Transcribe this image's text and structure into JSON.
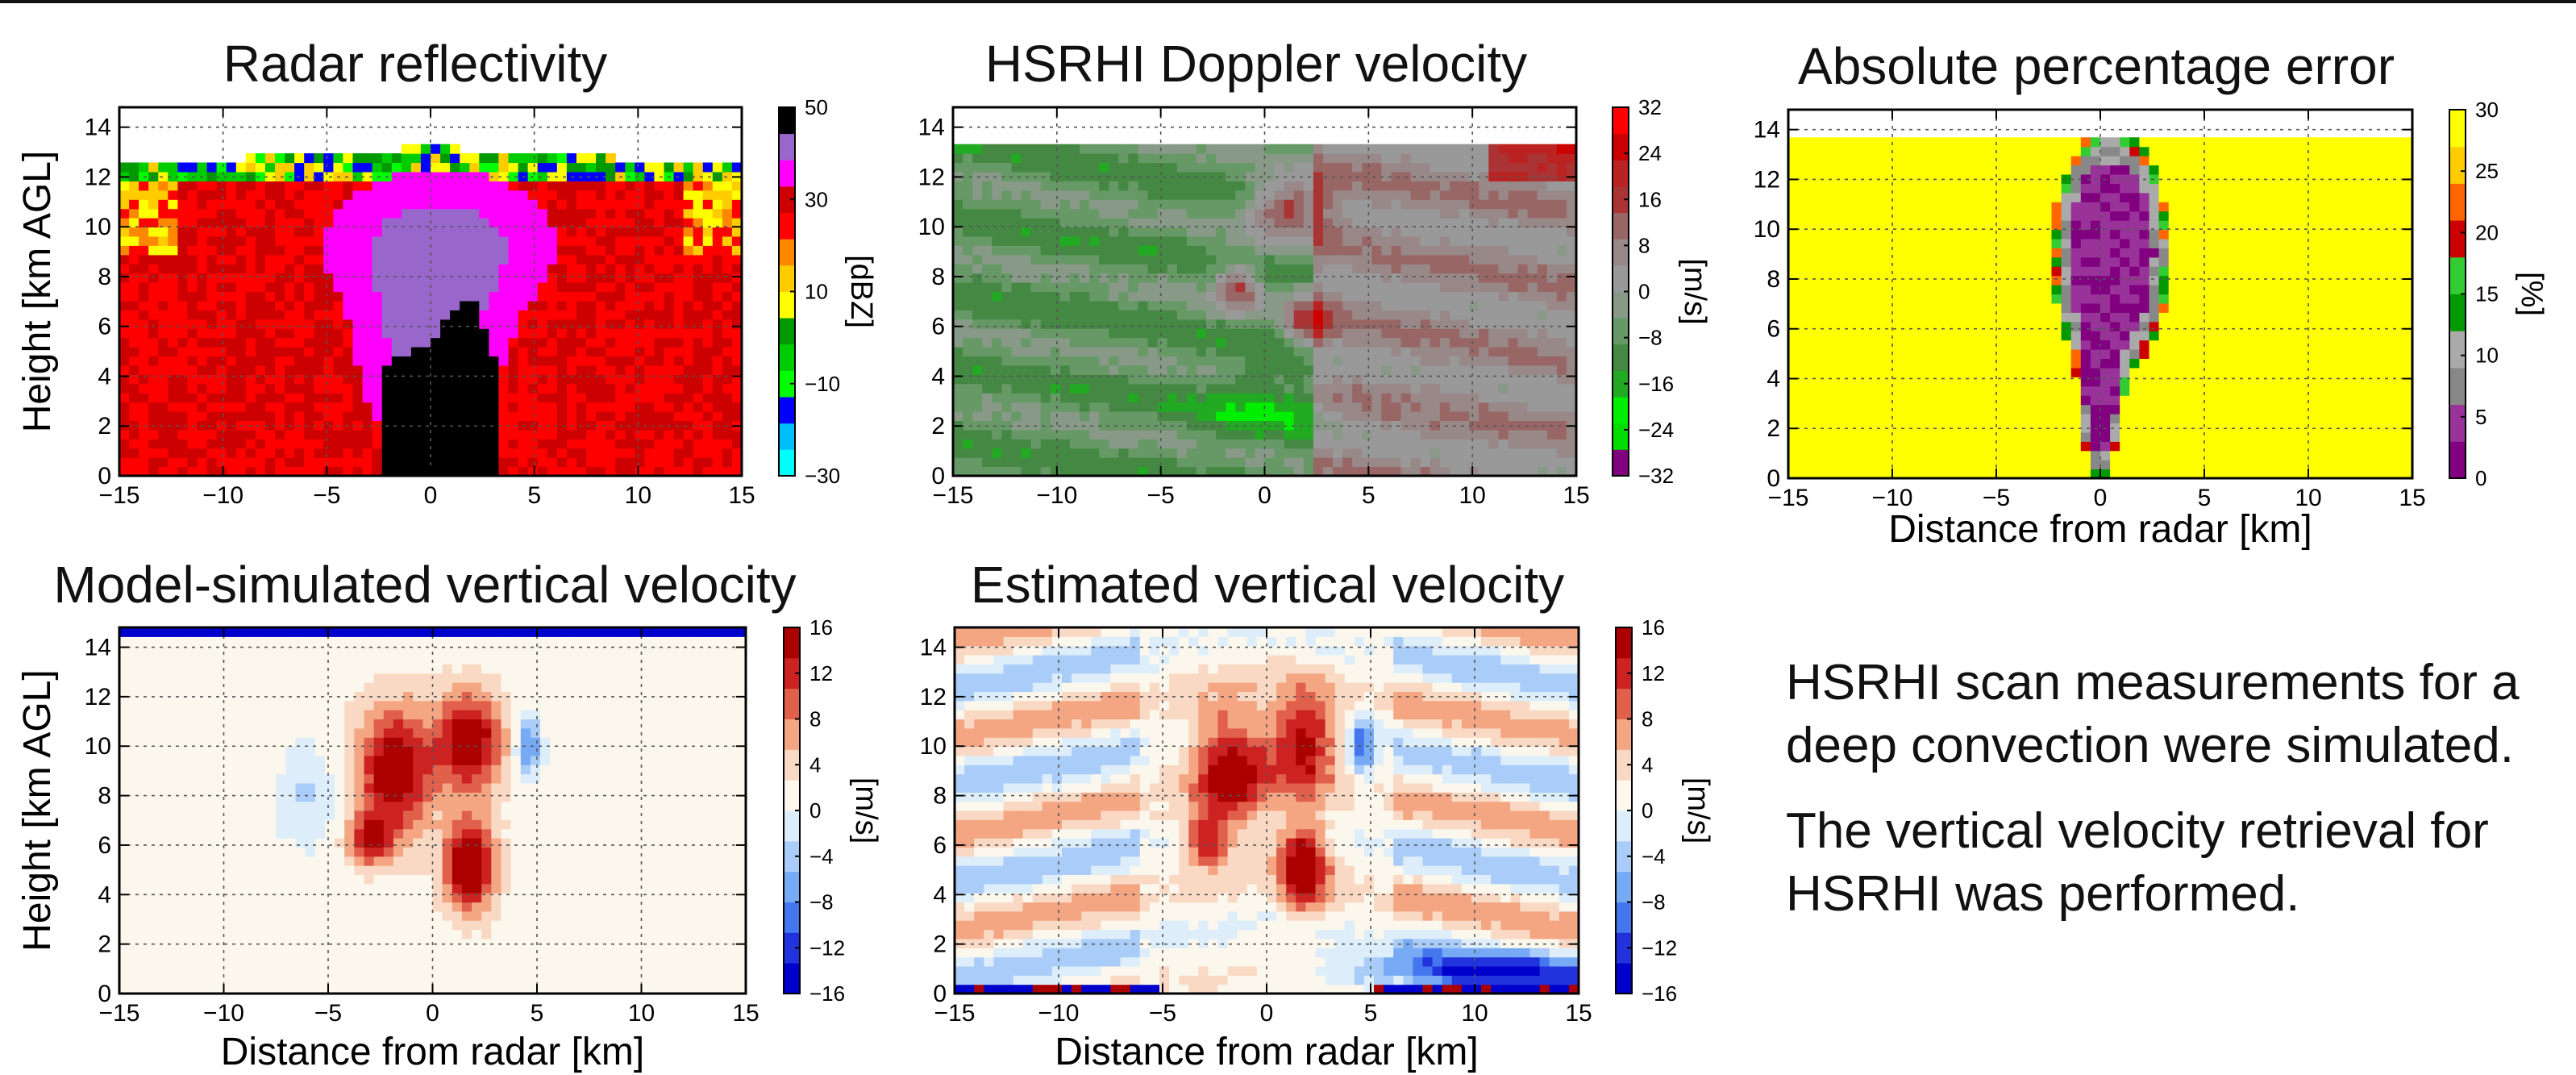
{
  "chart_data": [
    {
      "type": "heatmap",
      "title": "Radar reflectivity",
      "xlabel": "",
      "ylabel": "Height [km AGL]",
      "xlim": [
        -15,
        15
      ],
      "ylim": [
        0,
        14.8
      ],
      "xticks": [
        "−15",
        "−10",
        "−5",
        "0",
        "5",
        "10",
        "15"
      ],
      "yticks": [
        "0",
        "2",
        "4",
        "6",
        "8",
        "10",
        "12",
        "14"
      ],
      "colorbar": {
        "label": "[dBZ]",
        "ticks": [
          "50",
          "30",
          "10",
          "−10",
          "−30"
        ],
        "range": [
          -30,
          50
        ],
        "colors": [
          "#00ffff",
          "#00bfff",
          "#0000ff",
          "#00ff00",
          "#00cc00",
          "#009900",
          "#ffff00",
          "#ffcc00",
          "#ff8800",
          "#ff0000",
          "#cc0000",
          "#ff00ff",
          "#9966cc",
          "#000000"
        ]
      },
      "grid": true
    },
    {
      "type": "heatmap",
      "title": "HSRHI Doppler velocity",
      "xlabel": "",
      "ylabel": "",
      "xlim": [
        -15,
        15
      ],
      "ylim": [
        0,
        14.8
      ],
      "xticks": [
        "−15",
        "−10",
        "−5",
        "0",
        "5",
        "10",
        "15"
      ],
      "yticks": [
        "0",
        "2",
        "4",
        "6",
        "8",
        "10",
        "12",
        "14"
      ],
      "colorbar": {
        "label": "[m/s]",
        "ticks": [
          "32",
          "24",
          "16",
          "8",
          "0",
          "−8",
          "−16",
          "−24",
          "−32"
        ],
        "range": [
          -32,
          32
        ],
        "colors": [
          "#800080",
          "#00dd00",
          "#00ee00",
          "#22aa22",
          "#448844",
          "#669966",
          "#889988",
          "#999999",
          "#998888",
          "#996666",
          "#aa3333",
          "#bb2222",
          "#cc0000",
          "#ff0000"
        ]
      },
      "grid": true
    },
    {
      "type": "heatmap",
      "title": "Absolute percentage error",
      "xlabel": "Distance from radar [km]",
      "ylabel": "",
      "xlim": [
        -15,
        15
      ],
      "ylim": [
        0,
        14.8
      ],
      "xticks": [
        "−15",
        "−10",
        "−5",
        "0",
        "5",
        "10",
        "15"
      ],
      "yticks": [
        "0",
        "2",
        "4",
        "6",
        "8",
        "10",
        "12",
        "14"
      ],
      "colorbar": {
        "label": "[%]",
        "ticks": [
          "30",
          "25",
          "20",
          "15",
          "10",
          "5",
          "0"
        ],
        "range": [
          0,
          30
        ],
        "colors": [
          "#800080",
          "#993399",
          "#888888",
          "#aaaaaa",
          "#009900",
          "#33cc33",
          "#cc0000",
          "#ff6600",
          "#ffcc00",
          "#ffff00"
        ]
      },
      "grid": true
    },
    {
      "type": "heatmap",
      "title": "Model-simulated vertical velocity",
      "xlabel": "Distance from radar [km]",
      "ylabel": "Height [km AGL]",
      "xlim": [
        -15,
        15
      ],
      "ylim": [
        0,
        14.8
      ],
      "xticks": [
        "−15",
        "−10",
        "−5",
        "0",
        "5",
        "10",
        "15"
      ],
      "yticks": [
        "0",
        "2",
        "4",
        "6",
        "8",
        "10",
        "12",
        "14"
      ],
      "colorbar": {
        "label": "[m/s]",
        "ticks": [
          "16",
          "12",
          "8",
          "4",
          "0",
          "−4",
          "−8",
          "−12",
          "−16"
        ],
        "range": [
          -16,
          16
        ],
        "colors": [
          "#0000cc",
          "#2233dd",
          "#4477ee",
          "#77aaf5",
          "#aaccf8",
          "#ddeefa",
          "#fbf7ec",
          "#fad9c4",
          "#f4a582",
          "#e0604b",
          "#cc2222",
          "#aa0000"
        ]
      },
      "grid": true
    },
    {
      "type": "heatmap",
      "title": "Estimated vertical velocity",
      "xlabel": "Distance from radar [km]",
      "ylabel": "",
      "xlim": [
        -15,
        15
      ],
      "ylim": [
        0,
        14.8
      ],
      "xticks": [
        "−15",
        "−10",
        "−5",
        "0",
        "5",
        "10",
        "15"
      ],
      "yticks": [
        "0",
        "2",
        "4",
        "6",
        "8",
        "10",
        "12",
        "14"
      ],
      "colorbar": {
        "label": "[m/s]",
        "ticks": [
          "16",
          "12",
          "8",
          "4",
          "0",
          "−4",
          "−8",
          "−12",
          "−16"
        ],
        "range": [
          -16,
          16
        ],
        "colors": [
          "#0000cc",
          "#2233dd",
          "#4477ee",
          "#77aaf5",
          "#aaccf8",
          "#ddeefa",
          "#fbf7ec",
          "#fad9c4",
          "#f4a582",
          "#e0604b",
          "#cc2222",
          "#aa0000"
        ]
      },
      "grid": true
    }
  ],
  "description": {
    "line1": "HSRHI scan measurements for a deep convection were simulated.",
    "line2": "The vertical velocity retrieval for HSRHI was performed."
  }
}
